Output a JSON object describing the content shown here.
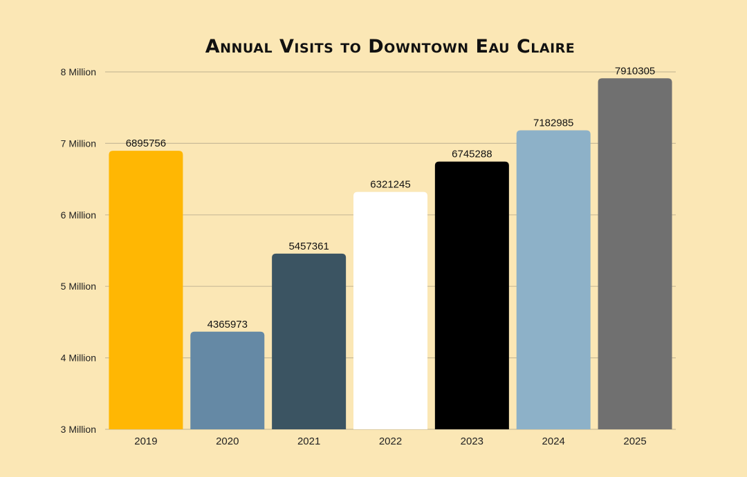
{
  "chart_data": {
    "type": "bar",
    "title": "Annual Visits to Downtown Eau Claire",
    "xlabel": "",
    "ylabel": "",
    "categories": [
      "2019",
      "2020",
      "2021",
      "2022",
      "2023",
      "2024",
      "2025"
    ],
    "values": [
      6895756,
      4365973,
      5457361,
      6321245,
      6745288,
      7182985,
      7910305
    ],
    "data_labels": [
      "6895756",
      "4365973",
      "5457361",
      "6321245",
      "6745288",
      "7182985",
      "7910305"
    ],
    "bar_colors": [
      "#ffb703",
      "#6589a5",
      "#3b5462",
      "#ffffff",
      "#000000",
      "#8db1c8",
      "#707070"
    ],
    "ylim": [
      3000000,
      8000000
    ],
    "yticks": [
      3000000,
      4000000,
      5000000,
      6000000,
      7000000,
      8000000
    ],
    "ytick_labels": [
      "3 Million",
      "4 Million",
      "5 Million",
      "6 Million",
      "7 Million",
      "8 Million"
    ],
    "grid": true,
    "legend": "none",
    "colors": {
      "background": "#fbe7b5",
      "grid": "#c9bb98",
      "text": "#222222"
    }
  }
}
